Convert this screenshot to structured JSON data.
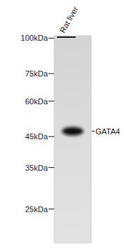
{
  "chart_data": {
    "type": "blot",
    "categories": [
      "Rat liver"
    ],
    "series": [
      {
        "name": "GATA4",
        "color": "#111111",
        "values": [
          47
        ]
      }
    ],
    "log": "y",
    "ylim": [
      19,
      102
    ],
    "yticks": [
      {
        "value": 25,
        "label": "25kDa"
      },
      {
        "value": 35,
        "label": "35kDa"
      },
      {
        "value": 45,
        "label": "45kDa"
      },
      {
        "value": 60,
        "label": "60kDa"
      },
      {
        "value": 75,
        "label": "75kDa"
      },
      {
        "value": 100,
        "label": "100kDa"
      }
    ]
  }
}
